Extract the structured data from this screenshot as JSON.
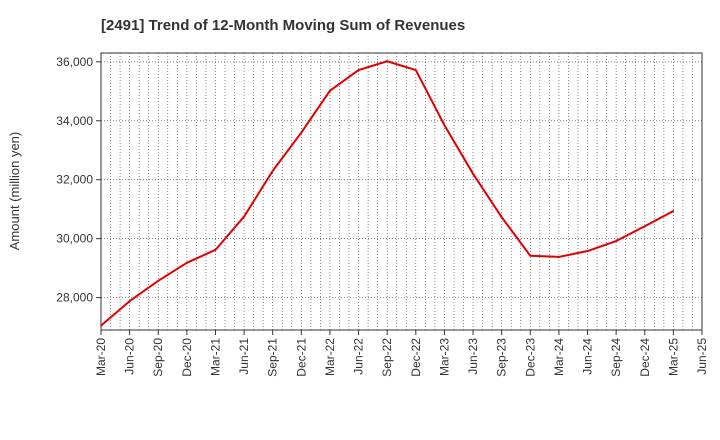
{
  "chart_data": {
    "type": "line",
    "title": "[2491]  Trend of 12-Month Moving Sum of Revenues",
    "xlabel": "",
    "ylabel": "Amount (million yen)",
    "ylim": [
      26900,
      36300
    ],
    "y_ticks": [
      28000,
      30000,
      32000,
      34000,
      36000
    ],
    "y_tick_labels": [
      "28,000",
      "30,000",
      "32,000",
      "34,000",
      "36,000"
    ],
    "x_tick_labels": [
      "Mar-20",
      "Jun-20",
      "Sep-20",
      "Dec-20",
      "Mar-21",
      "Jun-21",
      "Sep-21",
      "Dec-21",
      "Mar-22",
      "Jun-22",
      "Sep-22",
      "Dec-22",
      "Mar-23",
      "Jun-23",
      "Sep-23",
      "Dec-23",
      "Mar-24",
      "Jun-24",
      "Sep-24",
      "Dec-24",
      "Mar-25",
      "Jun-25"
    ],
    "grid": true,
    "series": [
      {
        "color": "#e00000",
        "x": [
          "Mar-20",
          "Jun-20",
          "Sep-20",
          "Dec-20",
          "Mar-21",
          "Jun-21",
          "Sep-21",
          "Dec-21",
          "Mar-22",
          "Jun-22",
          "Sep-22",
          "Dec-22",
          "Mar-23",
          "Jun-23",
          "Sep-23",
          "Dec-23",
          "Mar-24",
          "Jun-24",
          "Sep-24",
          "Dec-24",
          "Mar-25"
        ],
        "values": [
          27050,
          27880,
          28570,
          29180,
          29620,
          30750,
          32300,
          33600,
          35020,
          35720,
          36020,
          35720,
          33850,
          32200,
          30730,
          29420,
          29380,
          29580,
          29920,
          30420,
          30940
        ]
      }
    ]
  }
}
